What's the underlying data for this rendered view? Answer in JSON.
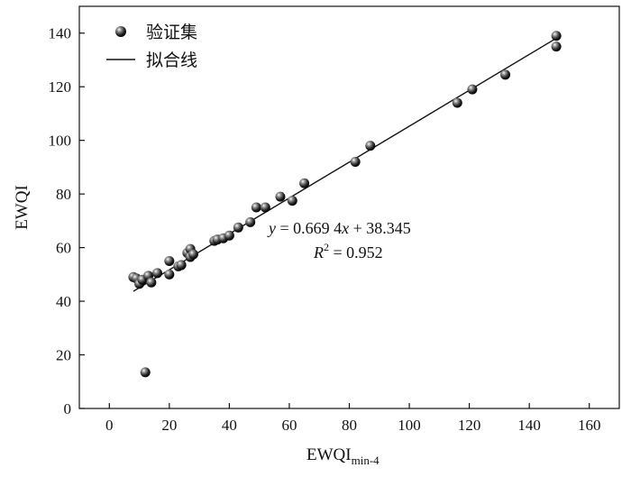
{
  "chart_data": {
    "type": "scatter",
    "xlabel_main": "EWQI",
    "xlabel_sub": "min-4",
    "ylabel": "EWQI",
    "xlim": [
      -10,
      170
    ],
    "ylim": [
      0,
      150
    ],
    "xticks": [
      0,
      20,
      40,
      60,
      80,
      100,
      120,
      140,
      160
    ],
    "yticks": [
      0,
      20,
      40,
      60,
      80,
      100,
      120,
      140
    ],
    "legend_position": "top-left",
    "series": [
      {
        "name": "验证集",
        "kind": "points",
        "points": [
          [
            8,
            49
          ],
          [
            9,
            48.5
          ],
          [
            10,
            46.5
          ],
          [
            11,
            48
          ],
          [
            12,
            13.5
          ],
          [
            13,
            49.5
          ],
          [
            14,
            47
          ],
          [
            16,
            50.5
          ],
          [
            20,
            50
          ],
          [
            20,
            55
          ],
          [
            23,
            53
          ],
          [
            24,
            53.5
          ],
          [
            26,
            58
          ],
          [
            27,
            59.5
          ],
          [
            27,
            56.5
          ],
          [
            28,
            57.5
          ],
          [
            35,
            62.5
          ],
          [
            36,
            63
          ],
          [
            38,
            63.5
          ],
          [
            40,
            64.5
          ],
          [
            43,
            67.5
          ],
          [
            47,
            69.5
          ],
          [
            49,
            75
          ],
          [
            52,
            75
          ],
          [
            57,
            79
          ],
          [
            61,
            77.5
          ],
          [
            65,
            84
          ],
          [
            82,
            92
          ],
          [
            87,
            98
          ],
          [
            116,
            114
          ],
          [
            121,
            119
          ],
          [
            132,
            124.5
          ],
          [
            149,
            139
          ],
          [
            149,
            135
          ]
        ]
      },
      {
        "name": "拟合线",
        "kind": "line",
        "slope": 0.6694,
        "intercept": 38.345,
        "x_range": [
          8,
          149
        ]
      }
    ],
    "annotations": {
      "equation_prefix": "y",
      "equation_mid": " = 0.669 4",
      "equation_x": "x",
      "equation_suffix": " + 38.345",
      "r2_label": "R",
      "r2_exp": "2",
      "r2_value": " = 0.952"
    }
  }
}
